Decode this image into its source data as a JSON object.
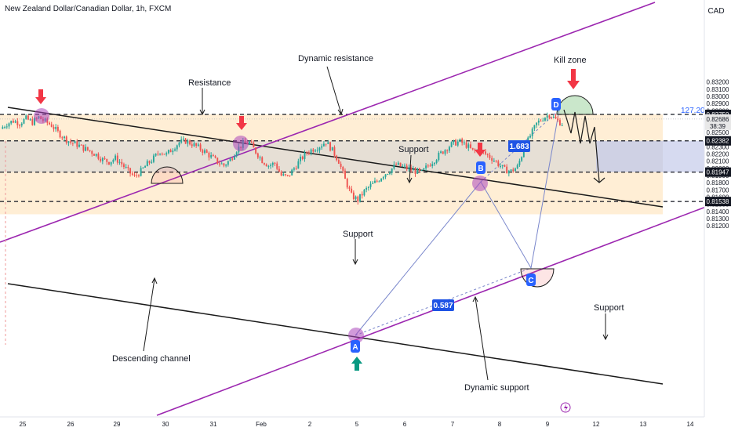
{
  "header": {
    "title": "New Zealand Dollar/Canadian Dollar, 1h, FXCM",
    "currency": "CAD"
  },
  "colors": {
    "bull": "#26a69a",
    "bear": "#ef5350",
    "purple": "#9c27b0",
    "blue_label": "#2962ff",
    "channel": "#1a1a1a",
    "orange_zone": "#ffe0b2",
    "grey_zone": "#d6d6d6",
    "blue_zone": "#c5cae9"
  },
  "chart_data": {
    "type": "candlestick",
    "title": "New Zealand Dollar/Canadian Dollar, 1h, FXCM",
    "x": {
      "tick_labels": [
        "25",
        "26",
        "29",
        "30",
        "31",
        "Feb",
        "2",
        "5",
        "6",
        "7",
        "8",
        "9",
        "12",
        "13",
        "14"
      ],
      "grid": false
    },
    "y": {
      "unit": "CAD",
      "ylim": [
        0.8115,
        0.8335
      ],
      "tick_labels": [
        "0.83200",
        "0.83100",
        "0.83000",
        "0.82900",
        "0.82800",
        "0.82700",
        "0.82600",
        "0.82500",
        "0.82400",
        "0.82300",
        "0.82200",
        "0.82100",
        "0.82000",
        "0.81900",
        "0.81800",
        "0.81700",
        "0.81600",
        "0.81500",
        "0.81400",
        "0.81300",
        "0.81200"
      ],
      "tick_values": [
        0.832,
        0.831,
        0.83,
        0.829,
        0.828,
        0.827,
        0.826,
        0.825,
        0.824,
        0.823,
        0.822,
        0.821,
        0.82,
        0.819,
        0.818,
        0.817,
        0.816,
        0.815,
        0.814,
        0.813,
        0.812
      ],
      "grid": false
    },
    "price_tags": [
      {
        "value": 0.8275,
        "label": "0.82750",
        "kind": "level"
      },
      {
        "value": 0.82686,
        "label": "0.82686",
        "sub": "38:39",
        "kind": "current"
      },
      {
        "value": 0.82382,
        "label": "0.82382",
        "kind": "level"
      },
      {
        "value": 0.81947,
        "label": "0.81947",
        "kind": "level"
      },
      {
        "value": 0.81538,
        "label": "0.81538",
        "kind": "level"
      }
    ],
    "horizontal_levels": [
      0.8275,
      0.82382,
      0.81947,
      0.81538
    ],
    "fib_extension": {
      "label": "127.20%",
      "value": 0.8275
    },
    "points": [
      {
        "name": "A",
        "value": 0.8154
      },
      {
        "name": "B",
        "value": 0.8239
      },
      {
        "name": "C",
        "value": 0.8193
      },
      {
        "name": "D",
        "value": 0.8275
      }
    ],
    "ratios": [
      "1.683",
      "0.587"
    ],
    "annotations": [
      "Dynamic resistance",
      "Resistance",
      "Kill zone",
      "Support",
      "Support",
      "Support",
      "Descending channel",
      "Dynamic support"
    ],
    "close_path": [
      0.8255,
      0.8262,
      0.8266,
      0.8263,
      0.8269,
      0.8264,
      0.8271,
      0.8265,
      0.826,
      0.825,
      0.8242,
      0.8236,
      0.8233,
      0.8228,
      0.8224,
      0.8219,
      0.8212,
      0.8209,
      0.8214,
      0.8206,
      0.8196,
      0.8188,
      0.8196,
      0.8206,
      0.8214,
      0.8224,
      0.8219,
      0.8228,
      0.8236,
      0.8238,
      0.8234,
      0.8229,
      0.8223,
      0.8216,
      0.8209,
      0.8204,
      0.8212,
      0.8226,
      0.8234,
      0.8236,
      0.8223,
      0.8211,
      0.8204,
      0.8207,
      0.819,
      0.8188,
      0.82,
      0.8212,
      0.8222,
      0.8227,
      0.8231,
      0.8237,
      0.8225,
      0.821,
      0.8184,
      0.8162,
      0.8156,
      0.8168,
      0.8176,
      0.8182,
      0.8191,
      0.8197,
      0.8205,
      0.8202,
      0.8199,
      0.8196,
      0.8194,
      0.8204,
      0.8212,
      0.8221,
      0.8229,
      0.8235,
      0.8237,
      0.8232,
      0.8224,
      0.8225,
      0.822,
      0.8214,
      0.8206,
      0.8198,
      0.8196,
      0.8202,
      0.8226,
      0.8245,
      0.8262,
      0.827,
      0.8275,
      0.8268,
      0.8262
    ]
  }
}
